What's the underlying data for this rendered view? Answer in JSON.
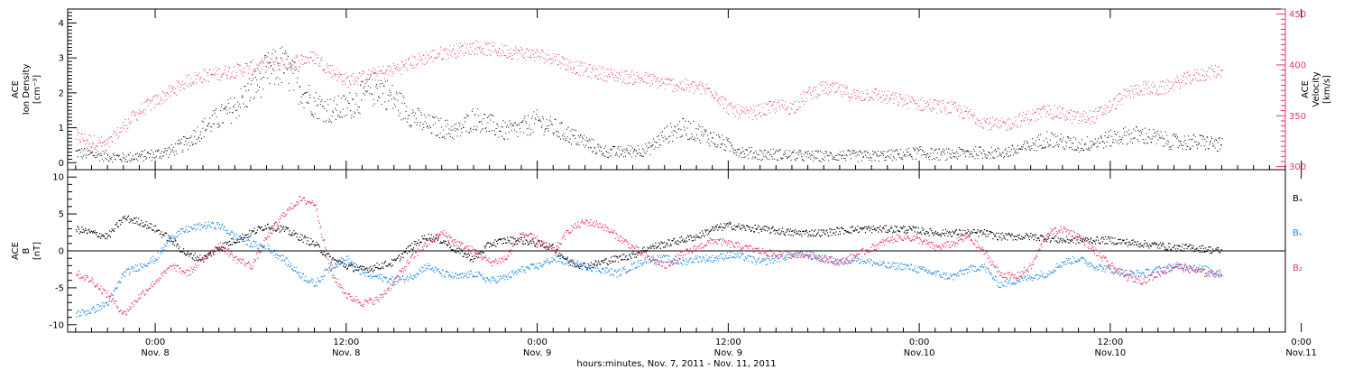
{
  "chart_data": [
    {
      "type": "scatter",
      "panel": "top",
      "ylabel_left": [
        "ACE",
        "Ion Density",
        "[cm⁻³]"
      ],
      "ylabel_right": [
        "ACE",
        "Velocity",
        "[km/s]"
      ],
      "ylim_left": [
        -0.2,
        4.4
      ],
      "ylim_right": [
        297,
        455
      ],
      "yticks_left": [
        "0",
        "1",
        "2",
        "3",
        "4"
      ],
      "yticks_right": [
        "300",
        "350",
        "400",
        "450"
      ],
      "colors": {
        "density": "#000000",
        "velocity": "#e8336b"
      },
      "series": [
        {
          "key": "density",
          "hours": [
            -5,
            -4,
            -3,
            -2,
            -1,
            0,
            1,
            2,
            3,
            4,
            5,
            6,
            7,
            8,
            9,
            10,
            11,
            12,
            13,
            14,
            15,
            16,
            17,
            18,
            19,
            20,
            21,
            22,
            23,
            24,
            25,
            26,
            27,
            28,
            29,
            30,
            31,
            32,
            33,
            34,
            35,
            36,
            37,
            38,
            39,
            40,
            41,
            42,
            43,
            44,
            45,
            46,
            47,
            48,
            49,
            50,
            51,
            52,
            53,
            54,
            55,
            56,
            57,
            58,
            59,
            60,
            61,
            62,
            63,
            64,
            65,
            66,
            67
          ],
          "values": [
            0.3,
            0.25,
            0.2,
            0.15,
            0.2,
            0.25,
            0.35,
            0.6,
            1.0,
            1.3,
            1.6,
            2.1,
            2.6,
            2.8,
            2.2,
            1.7,
            1.5,
            1.6,
            1.9,
            2.2,
            1.8,
            1.4,
            1.1,
            1.0,
            0.9,
            1.3,
            1.1,
            0.9,
            1.0,
            1.2,
            1.0,
            0.8,
            0.6,
            0.35,
            0.3,
            0.35,
            0.4,
            0.8,
            1.0,
            0.9,
            0.7,
            0.5,
            0.3,
            0.25,
            0.25,
            0.22,
            0.2,
            0.2,
            0.22,
            0.2,
            0.2,
            0.22,
            0.25,
            0.3,
            0.25,
            0.25,
            0.3,
            0.3,
            0.28,
            0.35,
            0.5,
            0.7,
            0.6,
            0.5,
            0.6,
            0.7,
            0.8,
            0.8,
            0.7,
            0.6,
            0.6,
            0.6,
            0.5
          ]
        },
        {
          "key": "velocity",
          "hours": [
            -5,
            -4,
            -3,
            -2,
            -1,
            0,
            1,
            2,
            3,
            4,
            5,
            6,
            7,
            8,
            9,
            10,
            11,
            12,
            13,
            14,
            15,
            16,
            17,
            18,
            19,
            20,
            21,
            22,
            23,
            24,
            25,
            26,
            27,
            28,
            29,
            30,
            31,
            32,
            33,
            34,
            35,
            36,
            37,
            38,
            39,
            40,
            41,
            42,
            43,
            44,
            45,
            46,
            47,
            48,
            49,
            50,
            51,
            52,
            53,
            54,
            55,
            56,
            57,
            58,
            59,
            60,
            61,
            62,
            63,
            64,
            65,
            66,
            67
          ],
          "values": [
            330,
            325,
            322,
            340,
            355,
            365,
            375,
            385,
            390,
            392,
            395,
            398,
            400,
            402,
            405,
            408,
            395,
            385,
            388,
            392,
            396,
            402,
            408,
            412,
            415,
            418,
            416,
            414,
            412,
            410,
            408,
            400,
            395,
            392,
            390,
            388,
            386,
            382,
            380,
            378,
            375,
            358,
            352,
            355,
            360,
            358,
            372,
            378,
            375,
            370,
            372,
            368,
            365,
            362,
            360,
            358,
            352,
            345,
            340,
            345,
            350,
            355,
            352,
            348,
            350,
            360,
            372,
            378,
            376,
            382,
            388,
            392,
            395
          ]
        }
      ]
    },
    {
      "type": "scatter",
      "panel": "bottom",
      "ylabel_left": [
        "ACE",
        "B",
        "[nT]"
      ],
      "ylim": [
        -11,
        11
      ],
      "yticks": [
        "-10",
        "-5",
        "0",
        "5",
        "10"
      ],
      "legend": [
        "Bₓ",
        "Bᵧ",
        "B₂"
      ],
      "colors": {
        "bx": "#000000",
        "by": "#1e88e5",
        "bz": "#e8336b"
      },
      "series": [
        {
          "key": "bx",
          "hours": [
            -5,
            -4,
            -3,
            -2,
            -1,
            0,
            1,
            2,
            3,
            4,
            5,
            6,
            7,
            8,
            9,
            10,
            11,
            12,
            13,
            14,
            15,
            16,
            17,
            18,
            19,
            20,
            21,
            22,
            23,
            24,
            25,
            26,
            27,
            28,
            29,
            30,
            31,
            32,
            33,
            34,
            35,
            36,
            37,
            38,
            39,
            40,
            41,
            42,
            43,
            44,
            45,
            46,
            47,
            48,
            49,
            50,
            51,
            52,
            53,
            54,
            55,
            56,
            57,
            58,
            59,
            60,
            61,
            62,
            63,
            64,
            65,
            66,
            67
          ],
          "values": [
            3.0,
            2.5,
            2.0,
            4.5,
            4.0,
            3.0,
            1.5,
            -0.5,
            -1.0,
            0.5,
            1.5,
            2.5,
            3.5,
            3.0,
            2.0,
            1.0,
            -1.0,
            -2.0,
            -2.5,
            -2.0,
            -1.5,
            0.5,
            2.0,
            1.5,
            0.0,
            -1.0,
            1.0,
            1.5,
            1.5,
            1.0,
            0.5,
            -1.5,
            -2.0,
            -1.5,
            -1.0,
            -0.5,
            0.5,
            1.0,
            1.5,
            2.0,
            3.0,
            3.5,
            3.2,
            3.0,
            2.8,
            2.5,
            2.5,
            2.5,
            2.8,
            3.0,
            3.0,
            3.0,
            3.0,
            2.8,
            2.5,
            2.5,
            2.5,
            2.5,
            2.0,
            2.0,
            2.0,
            1.8,
            1.5,
            1.5,
            1.5,
            1.5,
            1.2,
            1.0,
            0.8,
            0.5,
            0.5,
            0.3,
            0.0
          ]
        },
        {
          "key": "by",
          "hours": [
            -5,
            -4,
            -3,
            -2,
            -1,
            0,
            1,
            2,
            3,
            4,
            5,
            6,
            7,
            8,
            9,
            10,
            11,
            12,
            13,
            14,
            15,
            16,
            17,
            18,
            19,
            20,
            21,
            22,
            23,
            24,
            25,
            26,
            27,
            28,
            29,
            30,
            31,
            32,
            33,
            34,
            35,
            36,
            37,
            38,
            39,
            40,
            41,
            42,
            43,
            44,
            45,
            46,
            47,
            48,
            49,
            50,
            51,
            52,
            53,
            54,
            55,
            56,
            57,
            58,
            59,
            60,
            61,
            62,
            63,
            64,
            65,
            66,
            67
          ],
          "values": [
            -8.5,
            -8.0,
            -7.0,
            -3.0,
            -2.0,
            -1.0,
            2.0,
            3.0,
            3.5,
            3.5,
            2.0,
            1.0,
            0.5,
            -1.0,
            -3.0,
            -4.5,
            -2.0,
            -1.0,
            -3.0,
            -3.5,
            -4.0,
            -3.5,
            -2.0,
            -3.0,
            -3.5,
            -3.0,
            -4.0,
            -3.5,
            -2.5,
            -2.0,
            -1.0,
            -1.5,
            -2.0,
            -2.5,
            -3.0,
            -2.0,
            -1.0,
            -1.0,
            -1.5,
            -1.0,
            -1.0,
            -0.5,
            -0.8,
            -1.5,
            -1.0,
            -0.5,
            -0.5,
            -1.0,
            -1.5,
            -1.0,
            -1.5,
            -2.0,
            -2.0,
            -2.5,
            -3.0,
            -3.5,
            -2.5,
            -2.0,
            -4.5,
            -4.0,
            -3.5,
            -3.0,
            -1.5,
            -1.0,
            -2.0,
            -2.5,
            -3.0,
            -3.0,
            -2.5,
            -2.0,
            -2.0,
            -2.5,
            -3.0
          ]
        },
        {
          "key": "bz",
          "hours": [
            -5,
            -4,
            -3,
            -2,
            -1,
            0,
            1,
            2,
            3,
            4,
            5,
            6,
            7,
            8,
            9,
            10,
            11,
            12,
            13,
            14,
            15,
            16,
            17,
            18,
            19,
            20,
            21,
            22,
            23,
            24,
            25,
            26,
            27,
            28,
            29,
            30,
            31,
            32,
            33,
            34,
            35,
            36,
            37,
            38,
            39,
            40,
            41,
            42,
            43,
            44,
            45,
            46,
            47,
            48,
            49,
            50,
            51,
            52,
            53,
            54,
            55,
            56,
            57,
            58,
            59,
            60,
            61,
            62,
            63,
            64,
            65,
            66,
            67
          ],
          "values": [
            -3.0,
            -4.0,
            -6.0,
            -8.5,
            -6.0,
            -4.0,
            -2.0,
            -3.0,
            -1.0,
            1.0,
            -1.0,
            -2.0,
            2.0,
            5.0,
            7.0,
            6.5,
            -3.0,
            -6.0,
            -7.0,
            -6.5,
            -4.0,
            -1.0,
            1.0,
            2.5,
            1.0,
            0.0,
            -1.5,
            -1.0,
            2.5,
            1.5,
            0.0,
            3.0,
            4.0,
            3.5,
            2.0,
            0.5,
            -1.0,
            -2.0,
            -0.5,
            0.5,
            1.5,
            1.0,
            0.5,
            0.0,
            -0.5,
            -0.3,
            -0.5,
            -1.0,
            -1.5,
            -0.5,
            0.5,
            1.5,
            2.0,
            1.5,
            0.5,
            1.0,
            2.0,
            0.0,
            -3.0,
            -3.5,
            -2.0,
            2.5,
            3.0,
            2.0,
            0.0,
            -2.0,
            -3.5,
            -4.0,
            -3.0,
            -2.0,
            -2.5,
            -3.0,
            -3.0
          ]
        }
      ]
    }
  ],
  "xaxis": {
    "title": "hours:minutes, Nov.  7, 2011 - Nov. 11, 2011",
    "range_hours": [
      -5.5,
      71
    ],
    "ticks": [
      {
        "h": 0,
        "time": "0:00",
        "date": "Nov. 8"
      },
      {
        "h": 12,
        "time": "12:00",
        "date": "Nov. 8"
      },
      {
        "h": 24,
        "time": "0:00",
        "date": "Nov. 9"
      },
      {
        "h": 36,
        "time": "12:00",
        "date": "Nov. 9"
      },
      {
        "h": 48,
        "time": "0:00",
        "date": "Nov.10"
      },
      {
        "h": 60,
        "time": "12:00",
        "date": "Nov.10"
      },
      {
        "h": 72,
        "time": "0:00",
        "date": "Nov.11"
      }
    ]
  }
}
